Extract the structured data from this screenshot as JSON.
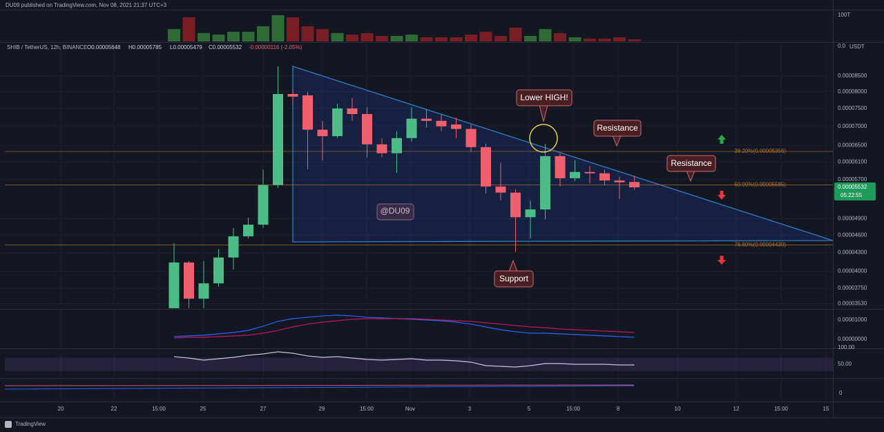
{
  "header": {
    "published": "DU09 published on TradingView.com, Nov 08, 2021 21:37 UTC+3",
    "symbol": "SHIB / TetherUS, 12h, BINANCE",
    "ohlc": [
      "O0.00005648",
      "H0.00005785",
      "L0.00005479",
      "C0.00005532",
      "-0.00000116 (-2.05%)"
    ],
    "currency": "USDT",
    "top_scale": "0.0",
    "panel4_tick": "0",
    "footer": "TradingView"
  },
  "last_price": {
    "price": "0.00005532",
    "countdown": "05:22:55",
    "color": "#1e9a5a"
  },
  "annotations": {
    "lower_high": "Lower HIGH!",
    "resistance_1": "Resistance",
    "resistance_2": "Resistance",
    "support": "Support",
    "watermark": "@DU09"
  },
  "chart_data": [
    {
      "type": "candlestick",
      "log": true,
      "grid": true,
      "up_color": "#4dbd87",
      "down_color": "#ef5f6d",
      "open": [
        3.47e-05,
        4.14e-05,
        3.6e-05,
        3.82e-05,
        4.22e-05,
        4.58e-05,
        4.79e-05,
        5.58e-05,
        7.93e-05,
        7.89e-05,
        6.91e-05,
        6.74e-05,
        7.5e-05,
        7.34e-05,
        6.53e-05,
        6.31e-05,
        6.69e-05,
        7.21e-05,
        7.15e-05,
        7.05e-05,
        6.93e-05,
        6.46e-05,
        5.55e-05,
        5.42e-05,
        4.93e-05,
        5.08e-05,
        6.24e-05,
        5.73e-05,
        5.87e-05,
        5.84e-05,
        5.68e-05,
        5.648e-05
      ],
      "high": [
        4.46e-05,
        4.16e-05,
        4.16e-05,
        4.36e-05,
        4.73e-05,
        4.92e-05,
        5.93e-05,
        8.82e-05,
        8.06e-05,
        8e-05,
        7.15e-05,
        7.64e-05,
        7.81e-05,
        7.54e-05,
        6.69e-05,
        6.87e-05,
        7.54e-05,
        7.48e-05,
        7.34e-05,
        7.24e-05,
        7.05e-05,
        6.55e-05,
        6.08e-05,
        5.49e-05,
        5.26e-05,
        6.55e-05,
        6.31e-05,
        6.14e-05,
        6.01e-05,
        5.92e-05,
        5.76e-05,
        5.785e-05
      ],
      "low": [
        3.47e-05,
        3.47e-05,
        3.47e-05,
        3.77e-05,
        4.03e-05,
        4.54e-05,
        4.73e-05,
        5.52e-05,
        7.64e-05,
        5.93e-05,
        6.14e-05,
        6.69e-05,
        7.15e-05,
        6.21e-05,
        6.21e-05,
        5.85e-05,
        6.6e-05,
        6.96e-05,
        6.87e-05,
        6.69e-05,
        6.34e-05,
        5.4e-05,
        5.26e-05,
        4.31e-05,
        4.54e-05,
        4.89e-05,
        5.55e-05,
        5.67e-05,
        5.62e-05,
        5.58e-05,
        5.29e-05,
        5.479e-05
      ],
      "close": [
        4.14e-05,
        3.6e-05,
        3.82e-05,
        4.22e-05,
        4.58e-05,
        4.79e-05,
        5.58e-05,
        7.93e-05,
        7.85e-05,
        6.91e-05,
        6.74e-05,
        7.5e-05,
        7.34e-05,
        6.53e-05,
        6.31e-05,
        6.69e-05,
        7.21e-05,
        7.15e-05,
        7e-05,
        6.93e-05,
        6.46e-05,
        5.55e-05,
        5.42e-05,
        4.93e-05,
        5.08e-05,
        6.24e-05,
        5.73e-05,
        5.87e-05,
        5.84e-05,
        5.68e-05,
        5.64e-05,
        5.532e-05
      ],
      "ylim": [
        3.46e-05,
        9.66e-05
      ],
      "yticks": [
        {
          "value": 8.5e-05,
          "label": "0.00008500"
        },
        {
          "value": 8e-05,
          "label": "0.00008000"
        },
        {
          "value": 7.5e-05,
          "label": "0.00007500"
        },
        {
          "value": 7e-05,
          "label": "0.00007000"
        },
        {
          "value": 6.5e-05,
          "label": "0.00006500"
        },
        {
          "value": 6.1e-05,
          "label": "0.00006100"
        },
        {
          "value": 5.7e-05,
          "label": "0.00005700"
        },
        {
          "value": 4.9e-05,
          "label": "0.00004900"
        },
        {
          "value": 4.6e-05,
          "label": "0.00004600"
        },
        {
          "value": 4.3e-05,
          "label": "0.00004300"
        },
        {
          "value": 4e-05,
          "label": "0.00004000"
        },
        {
          "value": 3.75e-05,
          "label": "0.00003750"
        },
        {
          "value": 3.53e-05,
          "label": "0.00003530"
        }
      ],
      "xtick_labels": [
        "20",
        "22",
        "15:00",
        "25",
        "27",
        "29",
        "15:00",
        "Nov",
        "3",
        "5",
        "15:00",
        "8",
        "10",
        "12",
        "15:00",
        "15"
      ],
      "fib_color": "#b8742c",
      "fib_levels": [
        {
          "value": 6.356e-05,
          "label": "38.20%(0.00006356)"
        },
        {
          "value": 5.585e-05,
          "label": "50.00%(0.00005585)"
        },
        {
          "value": 4.43e-05,
          "label": "78.60%(0.00004430)"
        }
      ]
    },
    {
      "type": "bar",
      "up_color": "#2f6b35",
      "down_color": "#7a1e25",
      "values": [
        47,
        92,
        32,
        26,
        37,
        37,
        58,
        100,
        92,
        58,
        47,
        32,
        26,
        32,
        21,
        21,
        26,
        16,
        16,
        16,
        26,
        37,
        21,
        53,
        21,
        47,
        32,
        16,
        11,
        11,
        16,
        8
      ],
      "ylim": [
        0,
        121
      ],
      "yticks": [
        {
          "value": 100,
          "label": "100T"
        }
      ]
    },
    {
      "type": "line",
      "series": [
        {
          "color": "#2962ff",
          "values": [
            1.43e-06,
            1.79e-06,
            2.14e-06,
            2.86e-06,
            3.57e-06,
            4.64e-06,
            6.79e-06,
            9.29e-06,
            1.07e-05,
            1.14e-05,
            1.21e-05,
            1.25e-05,
            1.21e-05,
            1.14e-05,
            1.11e-05,
            1.07e-05,
            1.04e-05,
            1e-05,
            9.64e-06,
            8.93e-06,
            7.86e-06,
            6.43e-06,
            5e-06,
            3.93e-06,
            3.21e-06,
            3.21e-06,
            2.86e-06,
            2.5e-06,
            2.14e-06,
            1.79e-06,
            1.43e-06,
            1.07e-06
          ]
        },
        {
          "color": "#c2185b",
          "values": [
            7.1e-07,
            1.07e-06,
            1.07e-06,
            1.43e-06,
            1.79e-06,
            2.14e-06,
            3.21e-06,
            4.64e-06,
            6.43e-06,
            7.86e-06,
            8.93e-06,
            9.64e-06,
            1.04e-05,
            1.07e-05,
            1.07e-05,
            1.07e-05,
            1.07e-05,
            1.04e-05,
            1e-05,
            9.64e-06,
            9.29e-06,
            8.57e-06,
            7.86e-06,
            7.14e-06,
            6.43e-06,
            6.07e-06,
            5.36e-06,
            5e-06,
            4.64e-06,
            4.29e-06,
            3.93e-06,
            3.57e-06
          ]
        }
      ],
      "ylim": [
        -5e-06,
        1.57e-05
      ],
      "yticks": [
        {
          "value": 1e-05,
          "label": "0.00001000"
        },
        {
          "value": 0,
          "label": "0.00000000"
        }
      ]
    },
    {
      "type": "line",
      "series": [
        {
          "color": "#c9c2dc",
          "values": [
            72.9,
            68.8,
            62.5,
            66.7,
            70.8,
            77.1,
            81.3,
            87.5,
            83.3,
            75,
            70.8,
            72.9,
            68.8,
            64.6,
            62.5,
            64.6,
            66.7,
            62.5,
            62.5,
            60.4,
            56.3,
            45.8,
            43.8,
            41.7,
            45.8,
            52.1,
            52.1,
            50,
            50,
            50,
            47.9,
            47.9
          ]
        }
      ],
      "ylim": [
        0,
        100
      ],
      "yticks": [
        {
          "value": 100,
          "label": "100.00"
        },
        {
          "value": 50,
          "label": "50.00"
        }
      ]
    }
  ]
}
